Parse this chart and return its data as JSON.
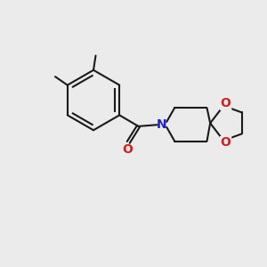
{
  "background_color": "#ebebeb",
  "bond_color": "#1a1a1a",
  "nitrogen_color": "#2020cc",
  "oxygen_color": "#cc2020",
  "line_width": 1.5,
  "figsize": [
    3.0,
    3.0
  ],
  "dpi": 100,
  "xlim": [
    -1,
    11
  ],
  "ylim": [
    -1,
    11
  ]
}
